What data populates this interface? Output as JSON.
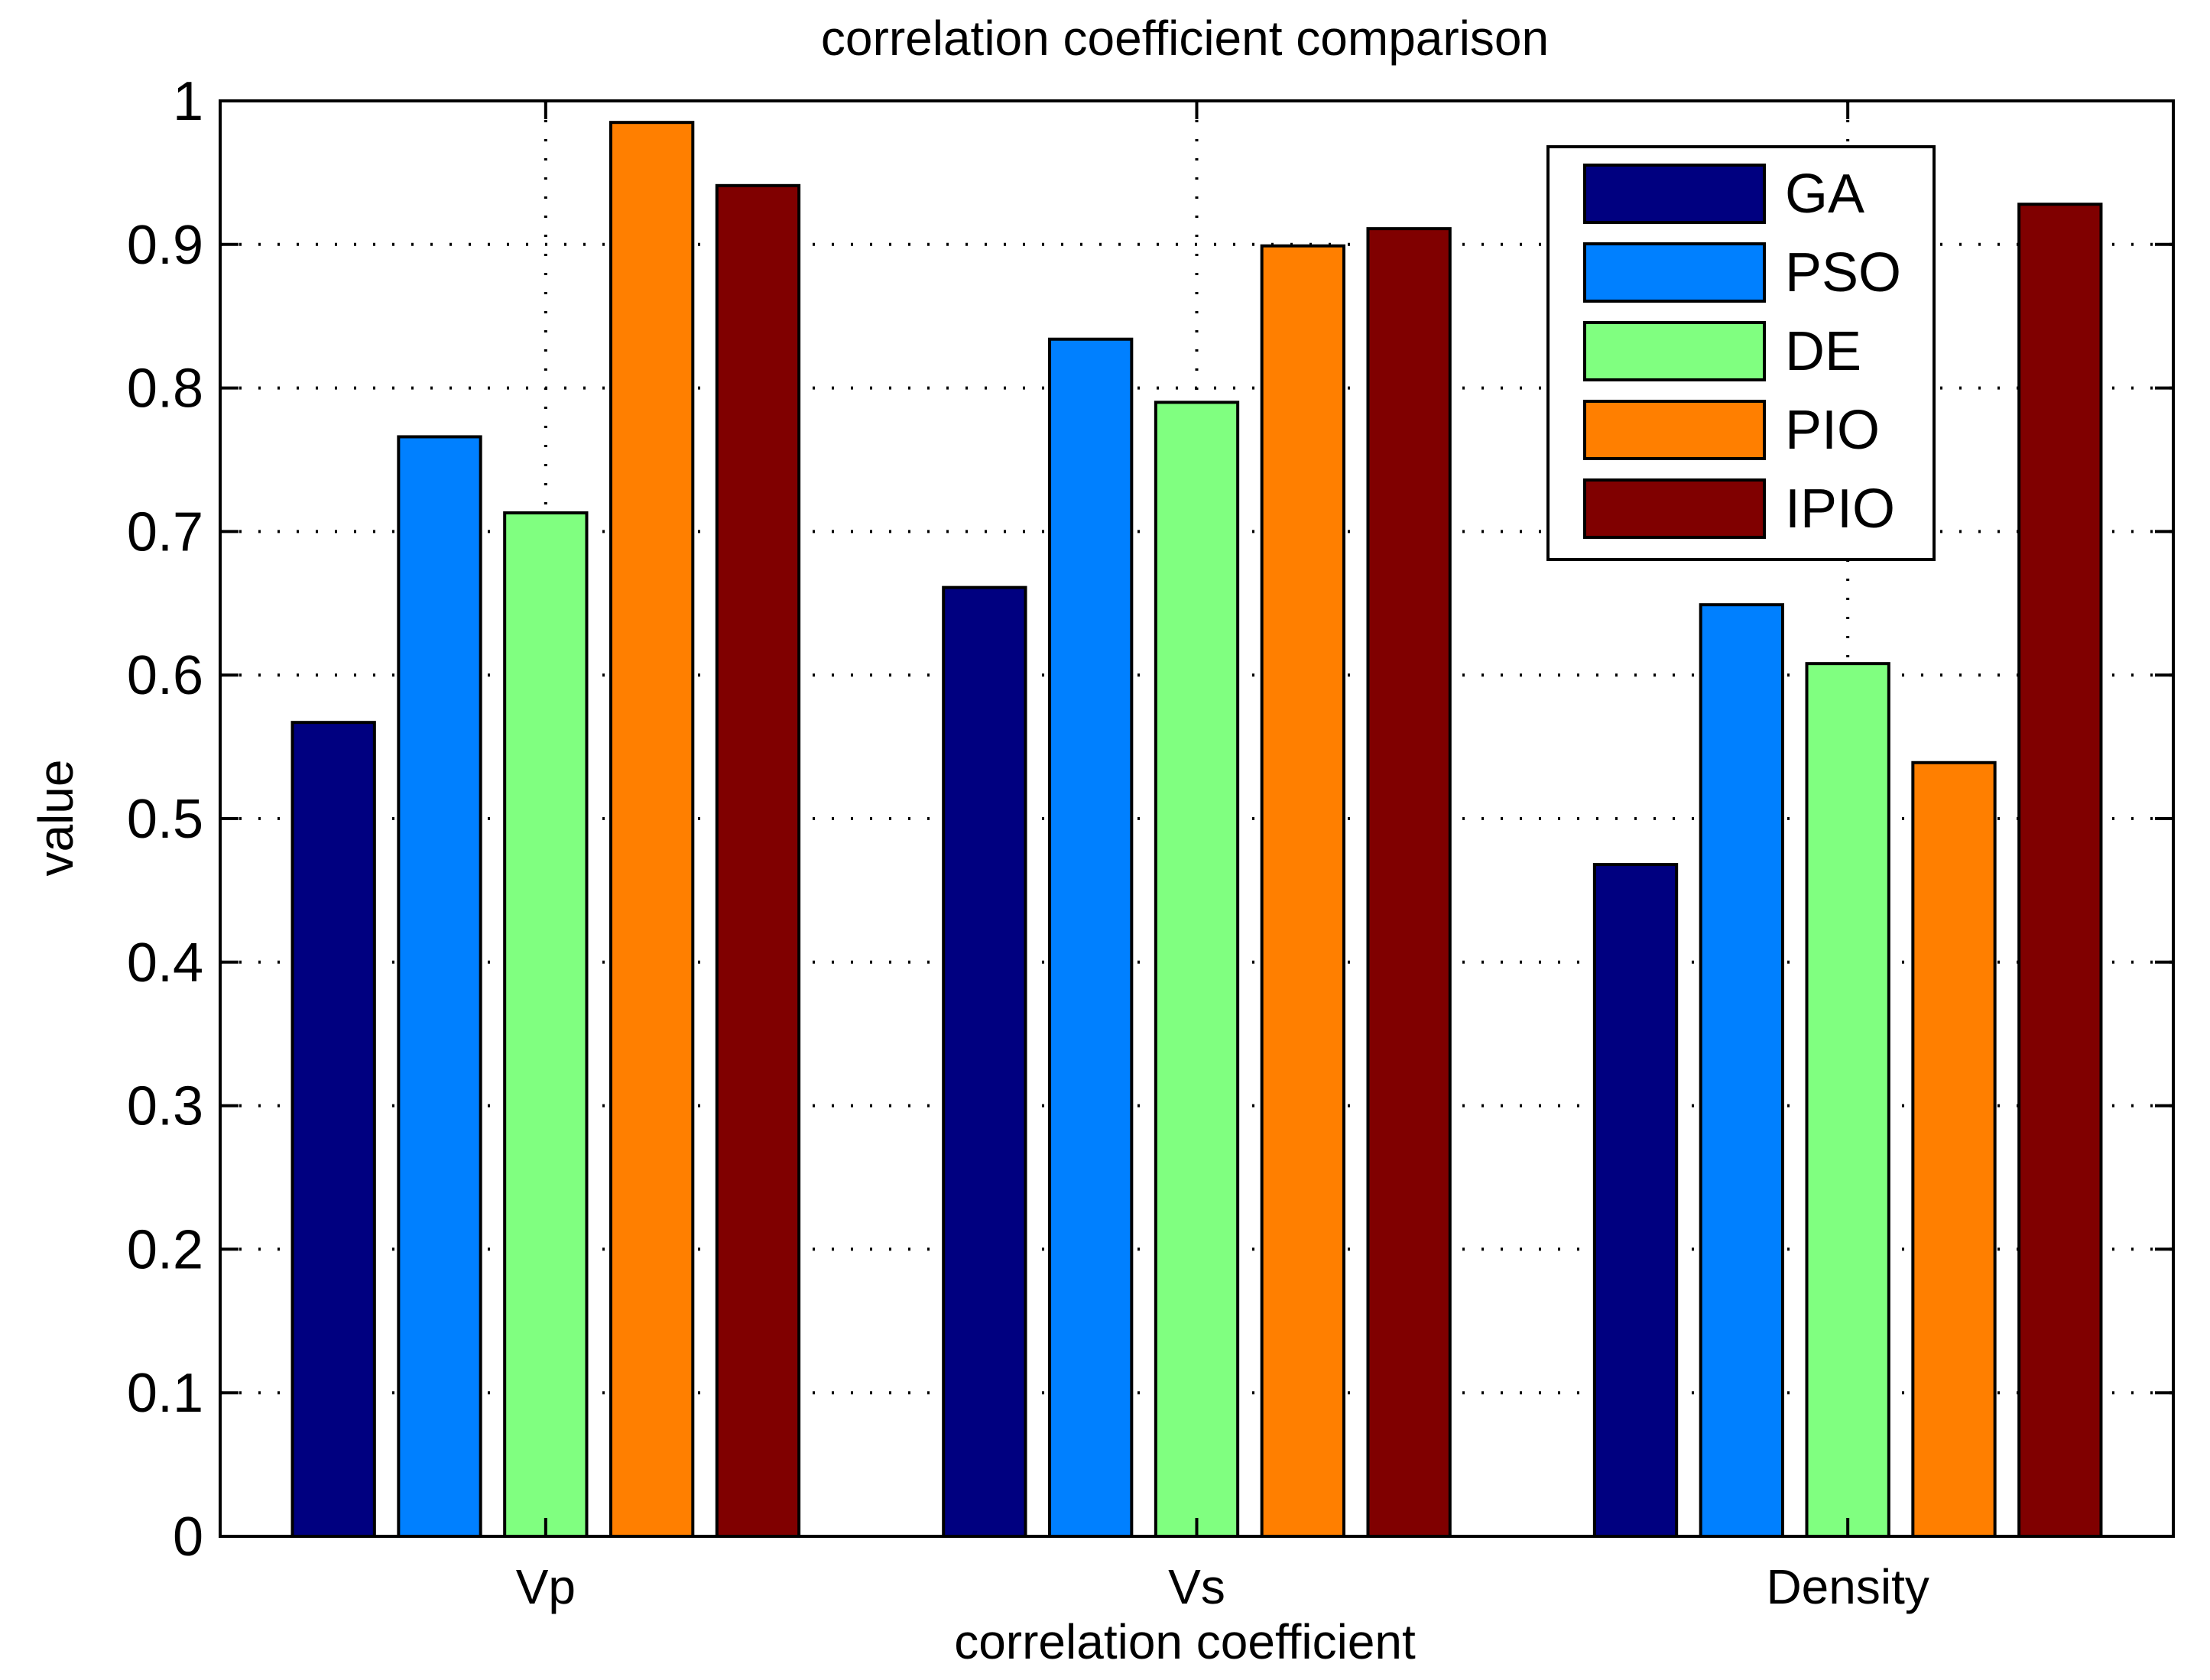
{
  "chart_data": {
    "type": "bar",
    "title": "correlation coefficient comparison",
    "xlabel": "correlation coefficient",
    "ylabel": "value",
    "categories": [
      "Vp",
      "Vs",
      "Density"
    ],
    "ylim": [
      0,
      1
    ],
    "yticks": [
      0,
      0.1,
      0.2,
      0.3,
      0.4,
      0.5,
      0.6,
      0.7,
      0.8,
      0.9,
      1
    ],
    "ytick_labels": [
      "0",
      "0.1",
      "0.2",
      "0.3",
      "0.4",
      "0.5",
      "0.6",
      "0.7",
      "0.8",
      "0.9",
      "1"
    ],
    "grid": true,
    "legend_position": "top-right",
    "series": [
      {
        "name": "GA",
        "color": "#000080",
        "values": [
          0.567,
          0.661,
          0.468
        ]
      },
      {
        "name": "PSO",
        "color": "#0080ff",
        "values": [
          0.766,
          0.834,
          0.649
        ]
      },
      {
        "name": "DE",
        "color": "#80ff80",
        "values": [
          0.713,
          0.79,
          0.608
        ]
      },
      {
        "name": "PIO",
        "color": "#ff7f00",
        "values": [
          0.985,
          0.899,
          0.539
        ]
      },
      {
        "name": "IPIO",
        "color": "#800000",
        "values": [
          0.941,
          0.911,
          0.928
        ]
      }
    ]
  }
}
